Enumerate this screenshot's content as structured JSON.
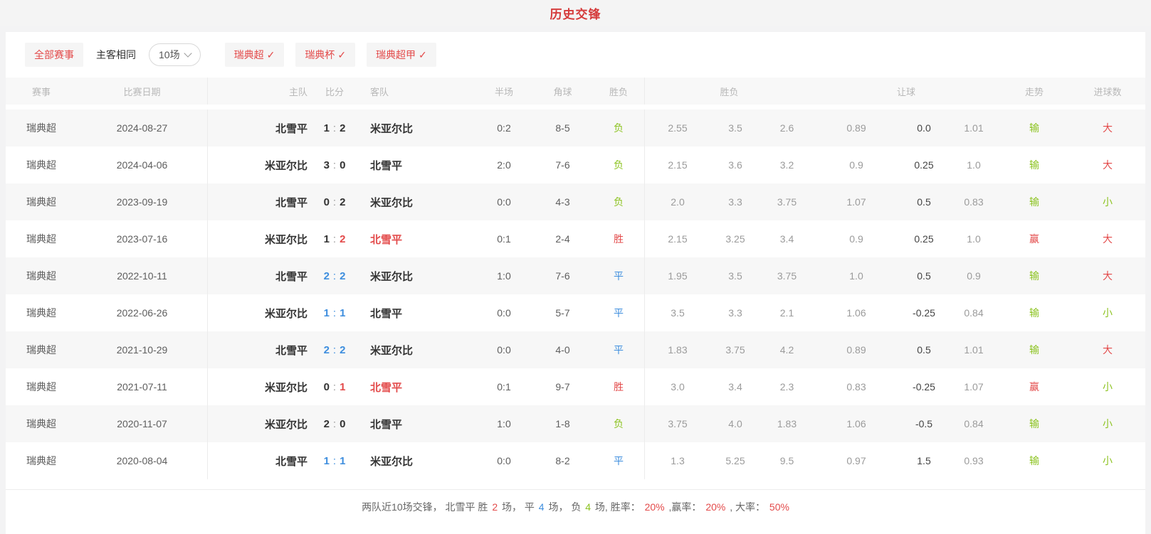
{
  "page": {
    "title": "历史交锋"
  },
  "colors": {
    "red": "#e34a4a",
    "green": "#8cc320",
    "blue": "#3e8ede"
  },
  "filters": {
    "all_label": "全部赛事",
    "venue_label": "主客相同",
    "count_label": "10场",
    "check_glyph": "✓",
    "leagues": [
      "瑞典超",
      "瑞典杯",
      "瑞典超甲"
    ]
  },
  "table": {
    "headers": {
      "league": "赛事",
      "date": "比赛日期",
      "home": "主队",
      "score": "比分",
      "away": "客队",
      "half": "半场",
      "corners": "角球",
      "result": "胜负",
      "odds_group": "胜负",
      "handicap_group": "让球",
      "trend": "走势",
      "goals": "进球数"
    },
    "rows": [
      {
        "league": "瑞典超",
        "date": "2024-08-27",
        "home": {
          "text": "北雪平",
          "color": "dark"
        },
        "score": {
          "home": "1",
          "colon": ":",
          "away": "2",
          "home_color": "dark",
          "colon_color": "gray",
          "away_color": "dark"
        },
        "away": {
          "text": "米亚尔比",
          "color": "dark"
        },
        "half": "0:2",
        "corners": "8-5",
        "result": {
          "text": "负",
          "color": "green"
        },
        "odds": [
          "2.55",
          "3.5",
          "2.6"
        ],
        "handicap": [
          "0.89",
          "0.0",
          "1.01"
        ],
        "trend": {
          "text": "输",
          "color": "green"
        },
        "goals": {
          "text": "大",
          "color": "red"
        }
      },
      {
        "league": "瑞典超",
        "date": "2024-04-06",
        "home": {
          "text": "米亚尔比",
          "color": "dark"
        },
        "score": {
          "home": "3",
          "colon": ":",
          "away": "0",
          "home_color": "dark",
          "colon_color": "gray",
          "away_color": "dark"
        },
        "away": {
          "text": "北雪平",
          "color": "dark"
        },
        "half": "2:0",
        "corners": "7-6",
        "result": {
          "text": "负",
          "color": "green"
        },
        "odds": [
          "2.15",
          "3.6",
          "3.2"
        ],
        "handicap": [
          "0.9",
          "0.25",
          "1.0"
        ],
        "trend": {
          "text": "输",
          "color": "green"
        },
        "goals": {
          "text": "大",
          "color": "red"
        }
      },
      {
        "league": "瑞典超",
        "date": "2023-09-19",
        "home": {
          "text": "北雪平",
          "color": "dark"
        },
        "score": {
          "home": "0",
          "colon": ":",
          "away": "2",
          "home_color": "dark",
          "colon_color": "gray",
          "away_color": "dark"
        },
        "away": {
          "text": "米亚尔比",
          "color": "dark"
        },
        "half": "0:0",
        "corners": "4-3",
        "result": {
          "text": "负",
          "color": "green"
        },
        "odds": [
          "2.0",
          "3.3",
          "3.75"
        ],
        "handicap": [
          "1.07",
          "0.5",
          "0.83"
        ],
        "trend": {
          "text": "输",
          "color": "green"
        },
        "goals": {
          "text": "小",
          "color": "green"
        }
      },
      {
        "league": "瑞典超",
        "date": "2023-07-16",
        "home": {
          "text": "米亚尔比",
          "color": "dark"
        },
        "score": {
          "home": "1",
          "colon": ":",
          "away": "2",
          "home_color": "dark",
          "colon_color": "gray",
          "away_color": "red"
        },
        "away": {
          "text": "北雪平",
          "color": "red"
        },
        "half": "0:1",
        "corners": "2-4",
        "result": {
          "text": "胜",
          "color": "red"
        },
        "odds": [
          "2.15",
          "3.25",
          "3.4"
        ],
        "handicap": [
          "0.9",
          "0.25",
          "1.0"
        ],
        "trend": {
          "text": "赢",
          "color": "red"
        },
        "goals": {
          "text": "大",
          "color": "red"
        }
      },
      {
        "league": "瑞典超",
        "date": "2022-10-11",
        "home": {
          "text": "北雪平",
          "color": "dark"
        },
        "score": {
          "home": "2",
          "colon": ":",
          "away": "2",
          "home_color": "blue",
          "colon_color": "blue",
          "away_color": "blue"
        },
        "away": {
          "text": "米亚尔比",
          "color": "dark"
        },
        "half": "1:0",
        "corners": "7-6",
        "result": {
          "text": "平",
          "color": "blue"
        },
        "odds": [
          "1.95",
          "3.5",
          "3.75"
        ],
        "handicap": [
          "1.0",
          "0.5",
          "0.9"
        ],
        "trend": {
          "text": "输",
          "color": "green"
        },
        "goals": {
          "text": "大",
          "color": "red"
        }
      },
      {
        "league": "瑞典超",
        "date": "2022-06-26",
        "home": {
          "text": "米亚尔比",
          "color": "dark"
        },
        "score": {
          "home": "1",
          "colon": ":",
          "away": "1",
          "home_color": "blue",
          "colon_color": "blue",
          "away_color": "blue"
        },
        "away": {
          "text": "北雪平",
          "color": "dark"
        },
        "half": "0:0",
        "corners": "5-7",
        "result": {
          "text": "平",
          "color": "blue"
        },
        "odds": [
          "3.5",
          "3.3",
          "2.1"
        ],
        "handicap": [
          "1.06",
          "-0.25",
          "0.84"
        ],
        "trend": {
          "text": "输",
          "color": "green"
        },
        "goals": {
          "text": "小",
          "color": "green"
        }
      },
      {
        "league": "瑞典超",
        "date": "2021-10-29",
        "home": {
          "text": "北雪平",
          "color": "dark"
        },
        "score": {
          "home": "2",
          "colon": ":",
          "away": "2",
          "home_color": "blue",
          "colon_color": "blue",
          "away_color": "blue"
        },
        "away": {
          "text": "米亚尔比",
          "color": "dark"
        },
        "half": "0:0",
        "corners": "4-0",
        "result": {
          "text": "平",
          "color": "blue"
        },
        "odds": [
          "1.83",
          "3.75",
          "4.2"
        ],
        "handicap": [
          "0.89",
          "0.5",
          "1.01"
        ],
        "trend": {
          "text": "输",
          "color": "green"
        },
        "goals": {
          "text": "大",
          "color": "red"
        }
      },
      {
        "league": "瑞典超",
        "date": "2021-07-11",
        "home": {
          "text": "米亚尔比",
          "color": "dark"
        },
        "score": {
          "home": "0",
          "colon": ":",
          "away": "1",
          "home_color": "dark",
          "colon_color": "gray",
          "away_color": "red"
        },
        "away": {
          "text": "北雪平",
          "color": "red"
        },
        "half": "0:1",
        "corners": "9-7",
        "result": {
          "text": "胜",
          "color": "red"
        },
        "odds": [
          "3.0",
          "3.4",
          "2.3"
        ],
        "handicap": [
          "0.83",
          "-0.25",
          "1.07"
        ],
        "trend": {
          "text": "赢",
          "color": "red"
        },
        "goals": {
          "text": "小",
          "color": "green"
        }
      },
      {
        "league": "瑞典超",
        "date": "2020-11-07",
        "home": {
          "text": "米亚尔比",
          "color": "dark"
        },
        "score": {
          "home": "2",
          "colon": ":",
          "away": "0",
          "home_color": "dark",
          "colon_color": "gray",
          "away_color": "dark"
        },
        "away": {
          "text": "北雪平",
          "color": "dark"
        },
        "half": "1:0",
        "corners": "1-8",
        "result": {
          "text": "负",
          "color": "green"
        },
        "odds": [
          "3.75",
          "4.0",
          "1.83"
        ],
        "handicap": [
          "1.06",
          "-0.5",
          "0.84"
        ],
        "trend": {
          "text": "输",
          "color": "green"
        },
        "goals": {
          "text": "小",
          "color": "green"
        }
      },
      {
        "league": "瑞典超",
        "date": "2020-08-04",
        "home": {
          "text": "北雪平",
          "color": "dark"
        },
        "score": {
          "home": "1",
          "colon": ":",
          "away": "1",
          "home_color": "blue",
          "colon_color": "blue",
          "away_color": "blue"
        },
        "away": {
          "text": "米亚尔比",
          "color": "dark"
        },
        "half": "0:0",
        "corners": "8-2",
        "result": {
          "text": "平",
          "color": "blue"
        },
        "odds": [
          "1.3",
          "5.25",
          "9.5"
        ],
        "handicap": [
          "0.97",
          "1.5",
          "0.93"
        ],
        "trend": {
          "text": "输",
          "color": "green"
        },
        "goals": {
          "text": "小",
          "color": "green"
        }
      }
    ]
  },
  "footer": {
    "segments": [
      {
        "text": "两队近10场交锋， 北雪平 胜 ",
        "color": "mid"
      },
      {
        "text": "2",
        "color": "red"
      },
      {
        "text": " 场， 平 ",
        "color": "mid"
      },
      {
        "text": "4",
        "color": "blue"
      },
      {
        "text": " 场， 负 ",
        "color": "mid"
      },
      {
        "text": "4",
        "color": "green"
      },
      {
        "text": " 场, 胜率： ",
        "color": "mid"
      },
      {
        "text": "20%",
        "color": "red"
      },
      {
        "text": " ,赢率： ",
        "color": "mid"
      },
      {
        "text": "20%",
        "color": "red"
      },
      {
        "text": " , 大率： ",
        "color": "mid"
      },
      {
        "text": "50%",
        "color": "red"
      }
    ]
  }
}
